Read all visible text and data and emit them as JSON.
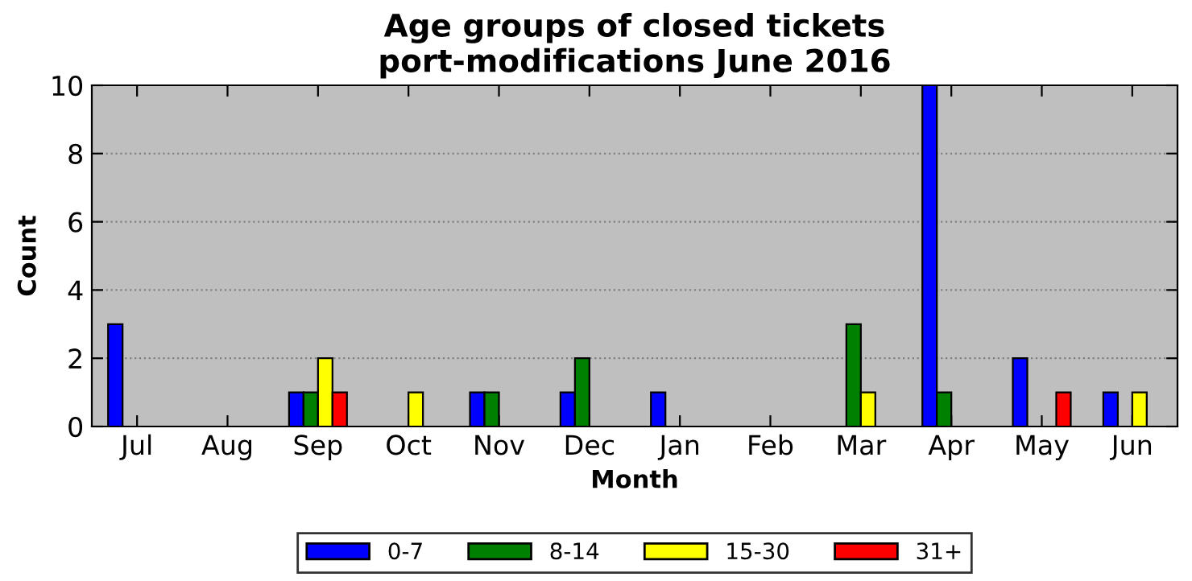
{
  "chart_data": {
    "type": "bar",
    "title": "Age groups of closed tickets\nport-modifications June 2016",
    "xlabel": "Month",
    "ylabel": "Count",
    "categories": [
      "Jul",
      "Aug",
      "Sep",
      "Oct",
      "Nov",
      "Dec",
      "Jan",
      "Feb",
      "Mar",
      "Apr",
      "May",
      "Jun"
    ],
    "series": [
      {
        "name": "0-7",
        "color": "#0000ff",
        "values": [
          3,
          0,
          1,
          0,
          1,
          1,
          1,
          0,
          0,
          10,
          2,
          1
        ]
      },
      {
        "name": "8-14",
        "color": "#008000",
        "values": [
          0,
          0,
          1,
          0,
          1,
          2,
          0,
          0,
          3,
          1,
          0,
          0
        ]
      },
      {
        "name": "15-30",
        "color": "#ffff00",
        "values": [
          0,
          0,
          2,
          1,
          0,
          0,
          0,
          0,
          1,
          0,
          0,
          1
        ]
      },
      {
        "name": "31+",
        "color": "#ff0000",
        "values": [
          0,
          0,
          1,
          0,
          0,
          0,
          0,
          0,
          0,
          0,
          1,
          0
        ]
      }
    ],
    "ylim": [
      0,
      10
    ],
    "yticks": [
      0,
      2,
      4,
      6,
      8,
      10
    ],
    "grid": "y",
    "legend": "bottom"
  }
}
